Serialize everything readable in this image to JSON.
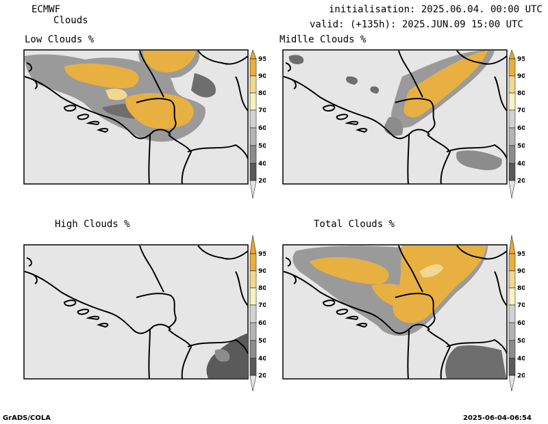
{
  "header": {
    "model": "ECMWF",
    "product": "Clouds",
    "initialisation": "initialisation: 2025.06.04. 00:00 UTC",
    "valid": "valid: (+135h): 2025.JUN.09 15:00 UTC"
  },
  "panels": [
    {
      "id": "low",
      "title": "Low Clouds %"
    },
    {
      "id": "middle",
      "title": "Midlle Clouds %"
    },
    {
      "id": "high",
      "title": "High Clouds %"
    },
    {
      "id": "total",
      "title": "Total Clouds %"
    }
  ],
  "colorbar": {
    "levels": [
      "20",
      "40",
      "50",
      "60",
      "70",
      "80",
      "90",
      "95"
    ],
    "colors": [
      "#3c3c3c",
      "#5a5a5a",
      "#8c8c8c",
      "#b4b4b4",
      "#d2d2d2",
      "#f4f4c0",
      "#f0d890",
      "#e8b040",
      "#e8a830"
    ]
  },
  "footer": {
    "left": "GrADS/COLA",
    "right": "2025-06-04-06:54"
  }
}
